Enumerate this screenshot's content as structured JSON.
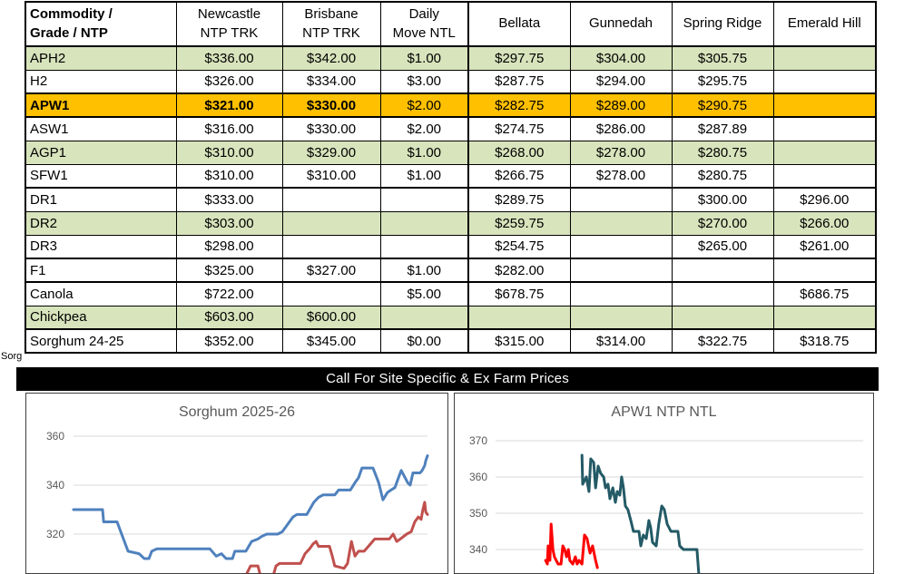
{
  "edge_text": "Sorg",
  "table": {
    "columns": [
      "Commodity /\nGrade / NTP",
      "Newcastle\nNTP TRK",
      "Brisbane\nNTP TRK",
      "Daily\nMove NTL",
      "Bellata",
      "Gunnedah",
      "Spring Ridge",
      "Emerald Hill"
    ],
    "rows": [
      {
        "grade": "APH2",
        "style": "green",
        "cells": [
          "$336.00",
          "$342.00",
          "$1.00",
          "$297.75",
          "$304.00",
          "$305.75",
          ""
        ]
      },
      {
        "grade": "H2",
        "style": "white",
        "cells": [
          "$326.00",
          "$334.00",
          "$3.00",
          "$287.75",
          "$294.00",
          "$295.75",
          ""
        ]
      },
      {
        "grade": "APW1",
        "style": "highlight",
        "cells": [
          "$321.00",
          "$330.00",
          "$2.00",
          "$282.75",
          "$289.00",
          "$290.75",
          ""
        ]
      },
      {
        "grade": "ASW1",
        "style": "white",
        "cells": [
          "$316.00",
          "$330.00",
          "$2.00",
          "$274.75",
          "$286.00",
          "$287.89",
          ""
        ]
      },
      {
        "grade": "AGP1",
        "style": "green",
        "cells": [
          "$310.00",
          "$329.00",
          "$1.00",
          "$268.00",
          "$278.00",
          "$280.75",
          ""
        ]
      },
      {
        "grade": "SFW1",
        "style": "white",
        "cells": [
          "$310.00",
          "$310.00",
          "$1.00",
          "$266.75",
          "$278.00",
          "$280.75",
          ""
        ]
      },
      {
        "grade": "DR1",
        "style": "white",
        "group_break": true,
        "cells": [
          "$333.00",
          "",
          "",
          "$289.75",
          "",
          "$300.00",
          "$296.00"
        ]
      },
      {
        "grade": "DR2",
        "style": "green",
        "cells": [
          "$303.00",
          "",
          "",
          "$259.75",
          "",
          "$270.00",
          "$266.00"
        ]
      },
      {
        "grade": "DR3",
        "style": "white",
        "cells": [
          "$298.00",
          "",
          "",
          "$254.75",
          "",
          "$265.00",
          "$261.00"
        ]
      },
      {
        "grade": "F1",
        "style": "white",
        "group_break": true,
        "cells": [
          "$325.00",
          "$327.00",
          "$1.00",
          "$282.00",
          "",
          "",
          ""
        ]
      },
      {
        "grade": "Canola",
        "style": "white",
        "group_break": true,
        "cells": [
          "$722.00",
          "",
          "$5.00",
          "$678.75",
          "",
          "",
          "$686.75"
        ]
      },
      {
        "grade": "Chickpea",
        "style": "green",
        "cells": [
          "$603.00",
          "$600.00",
          "",
          "",
          "",
          "",
          ""
        ]
      },
      {
        "grade": "Sorghum 24-25",
        "style": "white",
        "group_break": true,
        "cells": [
          "$352.00",
          "$345.00",
          "$0.00",
          "$315.00",
          "$314.00",
          "$322.75",
          "$318.75"
        ]
      }
    ]
  },
  "banner": {
    "label": "Call For Site Specific & Ex Farm Prices",
    "bg": "#000000",
    "color": "#ffffff"
  },
  "colors": {
    "row_green": "#D8E4BC",
    "row_highlight": "#FFC000",
    "chart_text": "#595959",
    "gridline": "#D9D9D9"
  },
  "chart_data": [
    {
      "type": "line",
      "title": "Sorghum 2025-26",
      "xlabel": "",
      "ylabel": "",
      "y_ticks": [
        360,
        340,
        320
      ],
      "ylim_visible": [
        314,
        364
      ],
      "grid": true,
      "legend": "none",
      "series": [
        {
          "name": "series-blue",
          "color": "#4F81BD",
          "points": [
            [
              0.0,
              330
            ],
            [
              0.082,
              330
            ],
            [
              0.085,
              325
            ],
            [
              0.123,
              325
            ],
            [
              0.136,
              320
            ],
            [
              0.154,
              313
            ],
            [
              0.185,
              312
            ],
            [
              0.2,
              310
            ],
            [
              0.213,
              310
            ],
            [
              0.221,
              313
            ],
            [
              0.236,
              314
            ],
            [
              0.385,
              314
            ],
            [
              0.403,
              311
            ],
            [
              0.418,
              312
            ],
            [
              0.431,
              310
            ],
            [
              0.449,
              310
            ],
            [
              0.456,
              313
            ],
            [
              0.487,
              313
            ],
            [
              0.503,
              317
            ],
            [
              0.521,
              318
            ],
            [
              0.531,
              319
            ],
            [
              0.546,
              320
            ],
            [
              0.577,
              320
            ],
            [
              0.59,
              321
            ],
            [
              0.61,
              325
            ],
            [
              0.62,
              327
            ],
            [
              0.631,
              328
            ],
            [
              0.659,
              328
            ],
            [
              0.667,
              330
            ],
            [
              0.679,
              333
            ],
            [
              0.692,
              335
            ],
            [
              0.705,
              336
            ],
            [
              0.738,
              336
            ],
            [
              0.749,
              338
            ],
            [
              0.782,
              338
            ],
            [
              0.795,
              341
            ],
            [
              0.805,
              343
            ],
            [
              0.815,
              347
            ],
            [
              0.846,
              347
            ],
            [
              0.854,
              344
            ],
            [
              0.862,
              341
            ],
            [
              0.869,
              337
            ],
            [
              0.874,
              334
            ],
            [
              0.887,
              337
            ],
            [
              0.897,
              338
            ],
            [
              0.908,
              339
            ],
            [
              0.918,
              343
            ],
            [
              0.926,
              346
            ],
            [
              0.933,
              344
            ],
            [
              0.944,
              341
            ],
            [
              0.951,
              340
            ],
            [
              0.959,
              345
            ],
            [
              0.979,
              345
            ],
            [
              0.985,
              346
            ],
            [
              0.992,
              348
            ],
            [
              0.995,
              350
            ],
            [
              1.0,
              352
            ]
          ]
        },
        {
          "name": "series-red",
          "color": "#C0504D",
          "points": [
            [
              0.49,
              304
            ],
            [
              0.5,
              307
            ],
            [
              0.521,
              307
            ],
            [
              0.528,
              303
            ],
            [
              0.541,
              302
            ],
            [
              0.556,
              302
            ],
            [
              0.564,
              303
            ],
            [
              0.572,
              307
            ],
            [
              0.582,
              308
            ],
            [
              0.641,
              308
            ],
            [
              0.654,
              312
            ],
            [
              0.667,
              314
            ],
            [
              0.677,
              316
            ],
            [
              0.685,
              317
            ],
            [
              0.692,
              315
            ],
            [
              0.723,
              315
            ],
            [
              0.731,
              311
            ],
            [
              0.738,
              307
            ],
            [
              0.764,
              306
            ],
            [
              0.774,
              308
            ],
            [
              0.785,
              317
            ],
            [
              0.795,
              311
            ],
            [
              0.805,
              313
            ],
            [
              0.821,
              313
            ],
            [
              0.833,
              315
            ],
            [
              0.851,
              318
            ],
            [
              0.892,
              318
            ],
            [
              0.903,
              320
            ],
            [
              0.913,
              317
            ],
            [
              0.923,
              318
            ],
            [
              0.941,
              320
            ],
            [
              0.954,
              321
            ],
            [
              0.964,
              325
            ],
            [
              0.974,
              327
            ],
            [
              0.982,
              326
            ],
            [
              0.987,
              330
            ],
            [
              0.992,
              333
            ],
            [
              0.995,
              329
            ],
            [
              1.0,
              328
            ]
          ]
        }
      ]
    },
    {
      "type": "line",
      "title": "APW1 NTP NTL",
      "xlabel": "",
      "ylabel": "",
      "y_ticks": [
        370,
        360,
        350,
        340
      ],
      "ylim_visible": [
        337,
        373
      ],
      "grid": true,
      "legend": "none",
      "series": [
        {
          "name": "series-teal",
          "color": "#235A66",
          "points": [
            [
              0.235,
              366
            ],
            [
              0.237,
              358
            ],
            [
              0.247,
              360
            ],
            [
              0.254,
              356
            ],
            [
              0.259,
              365
            ],
            [
              0.267,
              364
            ],
            [
              0.272,
              357
            ],
            [
              0.279,
              363
            ],
            [
              0.286,
              361
            ],
            [
              0.294,
              360
            ],
            [
              0.299,
              357
            ],
            [
              0.306,
              358
            ],
            [
              0.311,
              354
            ],
            [
              0.319,
              357
            ],
            [
              0.326,
              353
            ],
            [
              0.331,
              356
            ],
            [
              0.338,
              355
            ],
            [
              0.343,
              360
            ],
            [
              0.348,
              357
            ],
            [
              0.353,
              352
            ],
            [
              0.36,
              351
            ],
            [
              0.368,
              348
            ],
            [
              0.375,
              345
            ],
            [
              0.39,
              345
            ],
            [
              0.395,
              341
            ],
            [
              0.402,
              344
            ],
            [
              0.41,
              343
            ],
            [
              0.417,
              348
            ],
            [
              0.422,
              346
            ],
            [
              0.427,
              342
            ],
            [
              0.437,
              341
            ],
            [
              0.444,
              347
            ],
            [
              0.452,
              352
            ],
            [
              0.459,
              351
            ],
            [
              0.467,
              347
            ],
            [
              0.477,
              345
            ],
            [
              0.496,
              345
            ],
            [
              0.501,
              341
            ],
            [
              0.511,
              340
            ],
            [
              0.548,
              340
            ],
            [
              0.553,
              333
            ]
          ]
        },
        {
          "name": "series-red",
          "color": "#FF0000",
          "points": [
            [
              0.136,
              337
            ],
            [
              0.141,
              336
            ],
            [
              0.143,
              341
            ],
            [
              0.148,
              337
            ],
            [
              0.151,
              347
            ],
            [
              0.156,
              340
            ],
            [
              0.16,
              338
            ],
            [
              0.165,
              337
            ],
            [
              0.17,
              336
            ],
            [
              0.178,
              336
            ],
            [
              0.183,
              341
            ],
            [
              0.188,
              340
            ],
            [
              0.193,
              338
            ],
            [
              0.198,
              340
            ],
            [
              0.202,
              337
            ],
            [
              0.21,
              336
            ],
            [
              0.217,
              338
            ],
            [
              0.222,
              336
            ],
            [
              0.227,
              337
            ],
            [
              0.235,
              336
            ],
            [
              0.242,
              344
            ],
            [
              0.249,
              343
            ],
            [
              0.257,
              339
            ],
            [
              0.264,
              341
            ],
            [
              0.272,
              337
            ],
            [
              0.277,
              335
            ]
          ]
        }
      ]
    }
  ]
}
